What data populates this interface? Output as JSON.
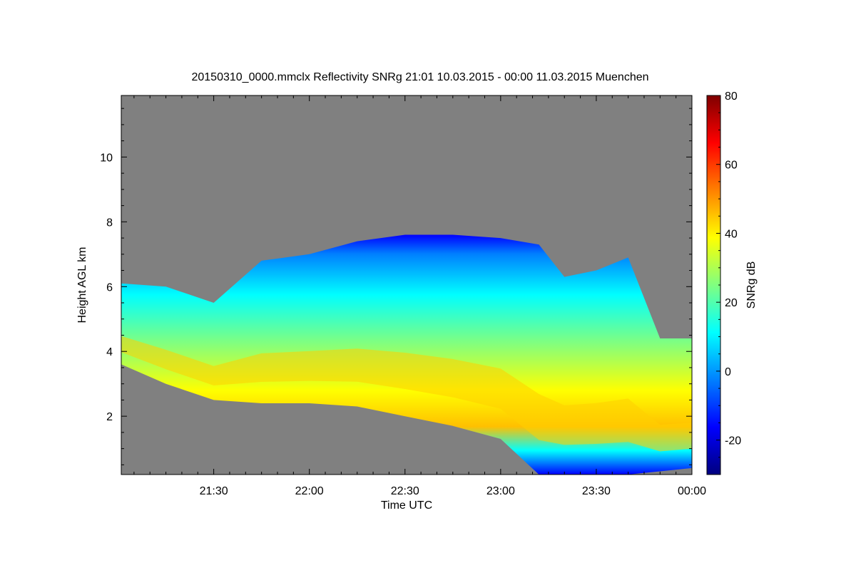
{
  "chart_data": {
    "type": "heatmap",
    "title": "20150310_0000.mmclx Reflectivity SNRg   21:01 10.03.2015 - 00:00 11.03.2015 Muenchen",
    "xlabel": "Time UTC",
    "ylabel": "Height AGL km",
    "colorbar_label": "SNRg dB",
    "x_range_minutes_utc": [
      1261,
      1440
    ],
    "y_range_km": [
      0.2,
      11.9
    ],
    "x_ticks": [
      {
        "minutes": 1290,
        "label": "21:30"
      },
      {
        "minutes": 1320,
        "label": "22:00"
      },
      {
        "minutes": 1350,
        "label": "22:30"
      },
      {
        "minutes": 1380,
        "label": "23:00"
      },
      {
        "minutes": 1410,
        "label": "23:30"
      },
      {
        "minutes": 1440,
        "label": "00:00"
      }
    ],
    "y_ticks": [
      2,
      4,
      6,
      8,
      10
    ],
    "colorbar_range_db": [
      -30,
      80
    ],
    "colorbar_ticks": [
      -20,
      0,
      20,
      40,
      60,
      80
    ],
    "colormap": [
      "#00007f",
      "#0000ff",
      "#0080ff",
      "#00ffff",
      "#80ff80",
      "#ffff00",
      "#ff8000",
      "#ff0000",
      "#7f0000"
    ],
    "background_color": "#808080",
    "cloud_echo": {
      "x_minutes": [
        1261,
        1275,
        1290,
        1305,
        1320,
        1335,
        1350,
        1365,
        1380,
        1392,
        1400,
        1410,
        1420,
        1430,
        1440
      ],
      "top_km": [
        6.1,
        6.0,
        5.5,
        6.8,
        7.0,
        7.4,
        7.6,
        7.6,
        7.5,
        7.3,
        6.3,
        6.5,
        6.9,
        4.4,
        4.4
      ],
      "base_km": [
        3.6,
        3.0,
        2.5,
        2.4,
        2.4,
        2.3,
        2.0,
        1.7,
        1.3,
        0.2,
        0.2,
        0.2,
        0.2,
        0.3,
        0.4
      ],
      "peak_snr_db": 48
    }
  }
}
